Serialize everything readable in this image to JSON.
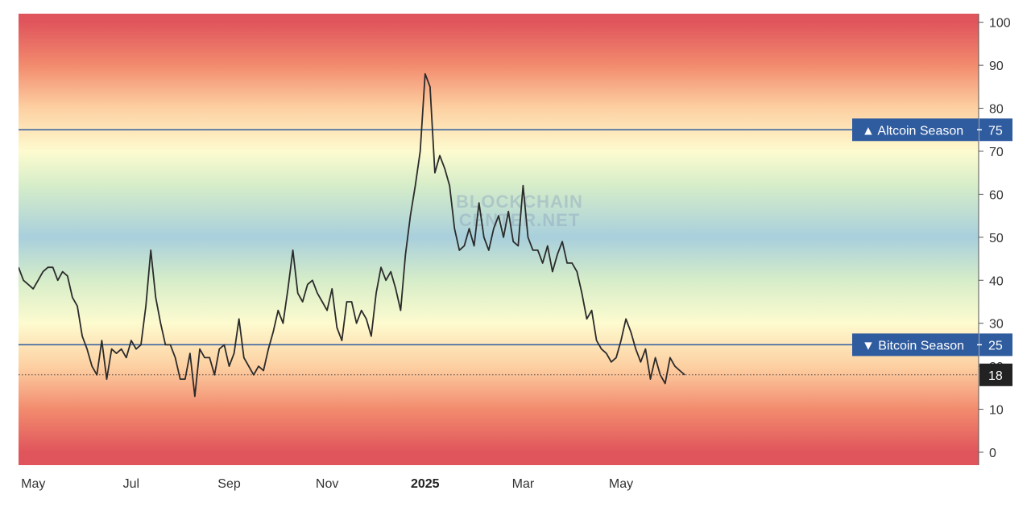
{
  "chart_data": {
    "type": "line",
    "title": "",
    "xlabel": "",
    "ylabel": "",
    "ylim": [
      -3,
      102
    ],
    "y_ticks": [
      0,
      10,
      20,
      30,
      40,
      50,
      60,
      70,
      80,
      90,
      100
    ],
    "x_ticks": [
      {
        "label": "May",
        "x": 0.3,
        "bold": false
      },
      {
        "label": "Jul",
        "x": 2.3,
        "bold": false
      },
      {
        "label": "Sep",
        "x": 4.3,
        "bold": false
      },
      {
        "label": "Nov",
        "x": 6.3,
        "bold": false
      },
      {
        "label": "2025",
        "x": 8.3,
        "bold": true
      },
      {
        "label": "Mar",
        "x": 10.3,
        "bold": false
      },
      {
        "label": "May",
        "x": 12.3,
        "bold": false
      }
    ],
    "xlim": [
      0,
      19.6
    ],
    "background_gradient": [
      {
        "value": 100,
        "color": "#e0555c"
      },
      {
        "value": 90,
        "color": "#f28b6e"
      },
      {
        "value": 80,
        "color": "#fdd0a2"
      },
      {
        "value": 70,
        "color": "#fdfbcf"
      },
      {
        "value": 62,
        "color": "#d6edc9"
      },
      {
        "value": 50,
        "color": "#a8cfdc"
      },
      {
        "value": 40,
        "color": "#d6edc9"
      },
      {
        "value": 30,
        "color": "#fdfbcf"
      },
      {
        "value": 20,
        "color": "#fdd0a2"
      },
      {
        "value": 10,
        "color": "#f28b6e"
      },
      {
        "value": 0,
        "color": "#e0555c"
      }
    ],
    "reference_lines": [
      {
        "value": 75,
        "label": "▲ Altcoin Season",
        "value_label": "75",
        "color": "#2f5b9f"
      },
      {
        "value": 25,
        "label": "▼ Bitcoin Season",
        "value_label": "25",
        "color": "#2f5b9f"
      }
    ],
    "current_value": {
      "value": 18,
      "label": "18",
      "color": "#222222"
    },
    "watermark": [
      "BLOCKCHAIN",
      "CENTER.NET"
    ],
    "series": [
      {
        "color": "#2b2b2b",
        "x": [
          0.0,
          0.1,
          0.2,
          0.3,
          0.4,
          0.5,
          0.6,
          0.7,
          0.8,
          0.9,
          1.0,
          1.1,
          1.2,
          1.3,
          1.4,
          1.5,
          1.6,
          1.7,
          1.8,
          1.9,
          2.0,
          2.1,
          2.2,
          2.3,
          2.4,
          2.5,
          2.6,
          2.7,
          2.8,
          2.9,
          3.0,
          3.1,
          3.2,
          3.3,
          3.4,
          3.5,
          3.6,
          3.7,
          3.8,
          3.9,
          4.0,
          4.1,
          4.2,
          4.3,
          4.4,
          4.5,
          4.6,
          4.7,
          4.8,
          4.9,
          5.0,
          5.1,
          5.2,
          5.3,
          5.4,
          5.5,
          5.6,
          5.7,
          5.8,
          5.9,
          6.0,
          6.1,
          6.2,
          6.3,
          6.4,
          6.5,
          6.6,
          6.7,
          6.8,
          6.9,
          7.0,
          7.1,
          7.2,
          7.3,
          7.4,
          7.5,
          7.6,
          7.7,
          7.8,
          7.9,
          8.0,
          8.1,
          8.2,
          8.3,
          8.4,
          8.5,
          8.6,
          8.7,
          8.8,
          8.9,
          9.0,
          9.1,
          9.2,
          9.3,
          9.4,
          9.5,
          9.6,
          9.7,
          9.8,
          9.9,
          10.0,
          10.1,
          10.2,
          10.3,
          10.4,
          10.5,
          10.6,
          10.7,
          10.8,
          10.9,
          11.0,
          11.1,
          11.2,
          11.3,
          11.4,
          11.5,
          11.6,
          11.7,
          11.8,
          11.9,
          12.0,
          12.1,
          12.2,
          12.3,
          12.4,
          12.5,
          12.6,
          12.7,
          12.8,
          12.9,
          13.0,
          13.1,
          13.2,
          13.3,
          13.4,
          13.5,
          13.6
        ],
        "values": [
          43,
          40,
          39,
          38,
          40,
          42,
          43,
          43,
          40,
          42,
          41,
          36,
          34,
          27,
          24,
          20,
          18,
          26,
          17,
          24,
          23,
          24,
          22,
          26,
          24,
          25,
          34,
          47,
          36,
          30,
          25,
          25,
          22,
          17,
          17,
          23,
          13,
          24,
          22,
          22,
          18,
          24,
          25,
          20,
          23,
          31,
          22,
          20,
          18,
          20,
          19,
          24,
          28,
          33,
          30,
          38,
          47,
          37,
          35,
          39,
          40,
          37,
          35,
          33,
          38,
          29,
          26,
          35,
          35,
          30,
          33,
          31,
          27,
          37,
          43,
          40,
          42,
          38,
          33,
          46,
          55,
          62,
          70,
          88,
          85,
          65,
          69,
          66,
          62,
          52,
          47,
          48,
          52,
          48,
          58,
          50,
          47,
          52,
          55,
          50,
          56,
          49,
          48,
          62,
          50,
          47,
          47,
          44,
          48,
          42,
          46,
          49,
          44,
          44,
          42,
          37,
          31,
          33,
          26,
          24,
          23,
          21,
          22,
          26,
          31,
          28,
          24,
          21,
          24,
          17,
          22,
          18,
          16,
          22,
          20,
          19,
          18
        ]
      }
    ]
  }
}
